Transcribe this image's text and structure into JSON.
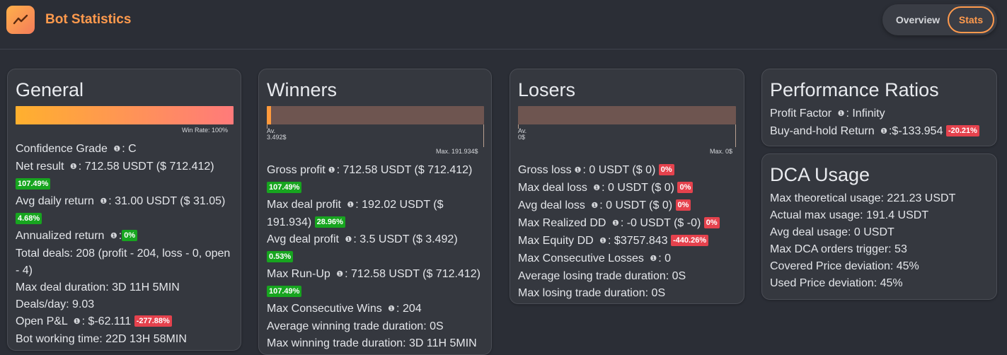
{
  "header": {
    "title": "Bot Statistics",
    "tabs": [
      {
        "label": "Overview",
        "active": false
      },
      {
        "label": "Stats",
        "active": true
      }
    ],
    "logo_icon": "trend-line-icon",
    "accent_color": "#ff9a4d"
  },
  "general": {
    "title": "General",
    "win_rate_label": "Win Rate: 100%",
    "win_rate": 1.0,
    "confidence_label": "Confidence Grade",
    "confidence_value": ": C",
    "net_label": "Net result",
    "net_value": ": 712.58 USDT ($ 712.412)",
    "net_badge": "107.49%",
    "avg_daily_label": "Avg daily return",
    "avg_daily_value": ": 31.00 USDT ($ 31.05)",
    "avg_daily_badge": "4.68%",
    "annualized_label": "Annualized return",
    "annualized_value": ":",
    "annualized_badge": "0%",
    "total_deals_line1": "Total deals: 208 (profit - 204, loss - 0, open",
    "total_deals_line2": "- 4)",
    "max_duration": "Max deal duration: 3D 11H 5MIN",
    "deals_day": "Deals/day: 9.03",
    "open_pl_label": "Open P&L",
    "open_pl_value": ": $-62.111",
    "open_pl_badge": "-277.88%",
    "working_time": "Bot working time: 22D 13H 58MIN"
  },
  "winners": {
    "title": "Winners",
    "bar_left_top": "Av.",
    "bar_left_bottom": "3.492$",
    "bar_right": "Max. 191.934$",
    "avg_fraction": 0.018,
    "gross_label": "Gross profit",
    "gross_value": ": 712.58 USDT ($ 712.412)",
    "gross_badge": "107.49%",
    "max_deal_label": "Max deal profit",
    "max_deal_value_1": ": 192.02 USDT ($",
    "max_deal_value_2": "191.934)",
    "max_deal_badge": "28.96%",
    "avg_deal_label": "Avg deal profit",
    "avg_deal_value": ": 3.5 USDT ($ 3.492)",
    "avg_deal_badge": "0.53%",
    "runup_label": "Max Run-Up",
    "runup_value": ": 712.58 USDT ($ 712.412)",
    "runup_badge": "107.49%",
    "consec_label": "Max Consecutive Wins",
    "consec_value": ": 204",
    "avg_duration": "Average winning trade duration: 0S",
    "max_duration": "Max winning trade duration: 3D 11H 5MIN"
  },
  "losers": {
    "title": "Losers",
    "bar_left_top": "Av.",
    "bar_left_bottom": "0$",
    "bar_right": "Max. 0$",
    "gross_label": "Gross loss",
    "gross_value": ": 0 USDT ($ 0)",
    "gross_badge": "0%",
    "max_deal_label": "Max deal loss",
    "max_deal_value": ": 0 USDT ($ 0)",
    "max_deal_badge": "0%",
    "avg_deal_label": "Avg deal loss",
    "avg_deal_value": ": 0 USDT ($ 0)",
    "avg_deal_badge": "0%",
    "realized_label": "Max Realized DD",
    "realized_value": ": -0 USDT ($ -0)",
    "realized_badge": "0%",
    "equity_label": "Max Equity DD",
    "equity_value": ": $3757.843",
    "equity_badge": "-440.26%",
    "consec_label": "Max Consecutive Losses",
    "consec_value": ": 0",
    "avg_duration": "Average losing trade duration: 0S",
    "max_duration": "Max losing trade duration: 0S"
  },
  "performance": {
    "title": "Performance Ratios",
    "pf_label": "Profit Factor",
    "pf_value": ": Infinity",
    "bh_label": "Buy-and-hold Return",
    "bh_value": ":$-133.954",
    "bh_badge": "-20.21%"
  },
  "dca": {
    "title": "DCA Usage",
    "items": [
      "Max theoretical usage: 221.23 USDT",
      "Actual max usage: 191.4 USDT",
      "Avg deal usage: 0 USDT",
      "Max DCA orders trigger: 53",
      "Covered Price deviation: 45%",
      "Used Price deviation: 45%"
    ]
  },
  "info_icon": "info-circle-icon",
  "info_glyph": "❶"
}
